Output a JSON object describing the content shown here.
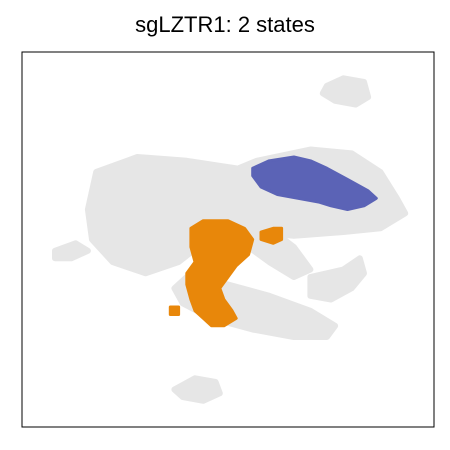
{
  "chart_data": {
    "type": "scatter",
    "title": "sgLZTR1: 2 states",
    "xlabel": "",
    "ylabel": "",
    "xlim": [
      0,
      100
    ],
    "ylim": [
      0,
      100
    ],
    "grid": false,
    "axes_ticks": false,
    "colors": {
      "background": "#e6e6e6",
      "state_1": "#5b63b6",
      "state_2": "#e8870a",
      "frame": "#000000"
    },
    "background_regions": [
      {
        "name": "upper-left-mass",
        "polygon": [
          [
            18,
            68
          ],
          [
            28,
            72
          ],
          [
            40,
            71
          ],
          [
            52,
            69
          ],
          [
            60,
            64
          ],
          [
            58,
            58
          ],
          [
            50,
            56
          ],
          [
            45,
            50
          ],
          [
            38,
            44
          ],
          [
            30,
            41
          ],
          [
            22,
            44
          ],
          [
            17,
            50
          ],
          [
            16,
            58
          ]
        ]
      },
      {
        "name": "upper-right-arc",
        "polygon": [
          [
            46,
            66
          ],
          [
            57,
            71
          ],
          [
            70,
            74
          ],
          [
            80,
            73
          ],
          [
            87,
            68
          ],
          [
            91,
            61
          ],
          [
            93,
            57
          ],
          [
            87,
            53
          ],
          [
            78,
            52
          ],
          [
            66,
            51
          ],
          [
            56,
            52
          ],
          [
            50,
            55
          ],
          [
            47,
            61
          ]
        ]
      },
      {
        "name": "middle-stem",
        "polygon": [
          [
            52,
            57
          ],
          [
            60,
            53
          ],
          [
            66,
            48
          ],
          [
            70,
            42
          ],
          [
            66,
            40
          ],
          [
            60,
            44
          ],
          [
            55,
            48
          ],
          [
            50,
            52
          ]
        ]
      },
      {
        "name": "lower-arm",
        "polygon": [
          [
            40,
            40
          ],
          [
            50,
            38
          ],
          [
            60,
            35
          ],
          [
            70,
            31
          ],
          [
            76,
            27
          ],
          [
            74,
            24
          ],
          [
            66,
            24
          ],
          [
            56,
            26
          ],
          [
            46,
            29
          ],
          [
            39,
            33
          ],
          [
            37,
            37
          ]
        ]
      },
      {
        "name": "right-branch",
        "polygon": [
          [
            70,
            40
          ],
          [
            78,
            42
          ],
          [
            82,
            45
          ],
          [
            83,
            41
          ],
          [
            80,
            37
          ],
          [
            75,
            34
          ],
          [
            70,
            35
          ]
        ]
      },
      {
        "name": "top-right-loop",
        "polygon": [
          [
            74,
            91
          ],
          [
            78,
            93
          ],
          [
            83,
            92
          ],
          [
            84,
            88
          ],
          [
            81,
            86
          ],
          [
            76,
            87
          ],
          [
            73,
            89
          ]
        ]
      },
      {
        "name": "left-streak",
        "polygon": [
          [
            8,
            47
          ],
          [
            13,
            49
          ],
          [
            16,
            47
          ],
          [
            12,
            45
          ],
          [
            8,
            45
          ]
        ]
      },
      {
        "name": "bottom-island",
        "polygon": [
          [
            37,
            10
          ],
          [
            42,
            13
          ],
          [
            47,
            12
          ],
          [
            48,
            9
          ],
          [
            44,
            7
          ],
          [
            39,
            8
          ]
        ]
      }
    ],
    "series": [
      {
        "name": "state 1",
        "color": "#5b63b6",
        "polygon": [
          [
            56,
            69
          ],
          [
            60,
            71
          ],
          [
            66,
            72
          ],
          [
            70,
            71
          ],
          [
            74,
            69
          ],
          [
            79,
            66
          ],
          [
            84,
            63
          ],
          [
            86,
            61
          ],
          [
            83,
            59
          ],
          [
            79,
            58
          ],
          [
            75,
            59
          ],
          [
            72,
            60
          ],
          [
            67,
            61
          ],
          [
            62,
            62
          ],
          [
            58,
            64
          ],
          [
            56,
            67
          ]
        ]
      },
      {
        "name": "state 2",
        "color": "#e8870a",
        "polygon": [
          [
            41,
            53
          ],
          [
            44,
            55
          ],
          [
            50,
            55
          ],
          [
            54,
            53
          ],
          [
            56,
            50
          ],
          [
            55,
            46
          ],
          [
            52,
            43
          ],
          [
            50,
            40
          ],
          [
            48,
            37
          ],
          [
            49,
            34
          ],
          [
            51,
            31
          ],
          [
            52,
            29
          ],
          [
            49,
            27
          ],
          [
            46,
            27
          ],
          [
            44,
            29
          ],
          [
            42,
            31
          ],
          [
            41,
            34
          ],
          [
            40,
            38
          ],
          [
            40,
            41
          ],
          [
            42,
            44
          ],
          [
            41,
            48
          ]
        ]
      },
      {
        "name": "state 2 (satellite)",
        "color": "#e8870a",
        "polygon": [
          [
            58,
            52
          ],
          [
            61,
            53
          ],
          [
            63,
            53
          ],
          [
            63,
            50
          ],
          [
            61,
            49
          ],
          [
            58,
            50
          ]
        ]
      },
      {
        "name": "state 2 (dot)",
        "color": "#e8870a",
        "polygon": [
          [
            36,
            32
          ],
          [
            38,
            32
          ],
          [
            38,
            30
          ],
          [
            36,
            30
          ]
        ]
      }
    ]
  }
}
